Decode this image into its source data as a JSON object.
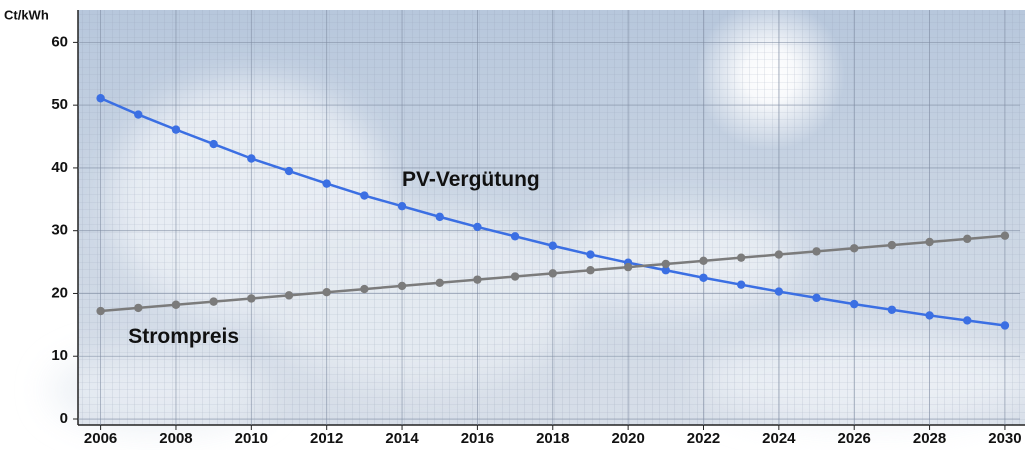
{
  "chart_data": {
    "type": "line",
    "y_label": "Ct/kWh",
    "x": [
      2006,
      2007,
      2008,
      2009,
      2010,
      2011,
      2012,
      2013,
      2014,
      2015,
      2016,
      2017,
      2018,
      2019,
      2020,
      2021,
      2022,
      2023,
      2024,
      2025,
      2026,
      2027,
      2028,
      2029,
      2030
    ],
    "series": [
      {
        "name": "PV-Vergütung",
        "color": "#3b6fe3",
        "values": [
          51.1,
          48.5,
          46.1,
          43.8,
          41.5,
          39.5,
          37.5,
          35.6,
          33.9,
          32.2,
          30.6,
          29.1,
          27.6,
          26.2,
          24.9,
          23.7,
          22.5,
          21.4,
          20.3,
          19.3,
          18.3,
          17.4,
          16.5,
          15.7,
          14.9
        ]
      },
      {
        "name": "Strompreis",
        "color": "#7b7b7b",
        "values": [
          17.2,
          17.7,
          18.2,
          18.7,
          19.2,
          19.7,
          20.2,
          20.7,
          21.2,
          21.7,
          22.2,
          22.7,
          23.2,
          23.7,
          24.2,
          24.7,
          25.2,
          25.7,
          26.2,
          26.7,
          27.2,
          27.7,
          28.2,
          28.7,
          29.2
        ]
      }
    ],
    "xlim": [
      2005.4,
      2030.4
    ],
    "xticks": [
      2006,
      2008,
      2010,
      2012,
      2014,
      2016,
      2018,
      2020,
      2022,
      2024,
      2026,
      2028,
      2030
    ],
    "ylim": [
      0,
      65
    ],
    "yticks": [
      0,
      10,
      20,
      30,
      40,
      50,
      60
    ],
    "grid": true
  }
}
